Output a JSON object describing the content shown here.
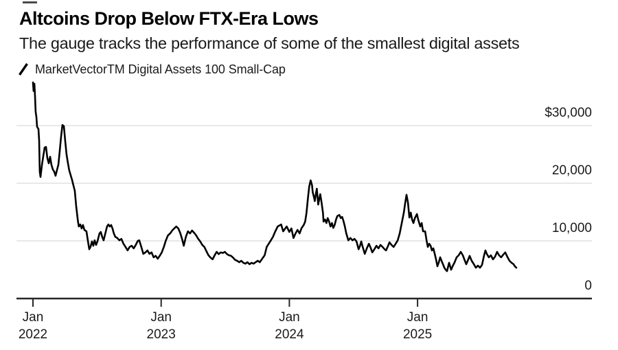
{
  "header": {
    "title": "Altcoins Drop Below FTX-Era Lows",
    "subtitle": "The gauge tracks the performance of some of the smallest digital assets"
  },
  "legend": {
    "series_label": "MarketVectorTM Digital Assets 100 Small-Cap",
    "marker_icon": "diagonal-line",
    "line_color": "#000000"
  },
  "colors": {
    "background": "#ffffff",
    "line": "#000000",
    "grid": "#d9d9d9",
    "axis": "#262626",
    "title_text": "#000000",
    "label_text": "#1a1a1a"
  },
  "chart_data": {
    "type": "line",
    "title": "Altcoins Drop Below FTX-Era Lows",
    "subtitle": "The gauge tracks the performance of some of the smallest digital assets",
    "xlabel": "",
    "ylabel": "",
    "y_axis_side": "right",
    "grid": "horizontal",
    "legend_position": "top-left",
    "ylim": [
      0,
      40000
    ],
    "x_range_years": [
      2021.87,
      2026.35
    ],
    "y_ticks": [
      {
        "label": "$30,000",
        "value": 30000
      },
      {
        "label": "20,000",
        "value": 20000
      },
      {
        "label": "10,000",
        "value": 10000
      },
      {
        "label": "0",
        "value": 0
      }
    ],
    "x_ticks": [
      {
        "month": "Jan",
        "year": "2022",
        "t": 2022.0
      },
      {
        "month": "Jan",
        "year": "2023",
        "t": 2023.0
      },
      {
        "month": "Jan",
        "year": "2024",
        "t": 2024.0
      },
      {
        "month": "Jan",
        "year": "2025",
        "t": 2025.0
      }
    ],
    "series": [
      {
        "name": "MarketVectorTM Digital Assets 100 Small-Cap",
        "color": "#000000",
        "points": [
          [
            2022.0,
            37500
          ],
          [
            2022.005,
            36000
          ],
          [
            2022.011,
            37250
          ],
          [
            2022.016,
            35100
          ],
          [
            2022.021,
            32400
          ],
          [
            2022.027,
            31500
          ],
          [
            2022.032,
            29800
          ],
          [
            2022.043,
            29400
          ],
          [
            2022.048,
            27400
          ],
          [
            2022.053,
            22000
          ],
          [
            2022.059,
            21100
          ],
          [
            2022.07,
            23200
          ],
          [
            2022.08,
            24600
          ],
          [
            2022.091,
            26200
          ],
          [
            2022.102,
            26300
          ],
          [
            2022.112,
            24400
          ],
          [
            2022.123,
            23450
          ],
          [
            2022.134,
            24600
          ],
          [
            2022.144,
            23200
          ],
          [
            2022.155,
            22400
          ],
          [
            2022.166,
            22000
          ],
          [
            2022.176,
            21300
          ],
          [
            2022.187,
            22250
          ],
          [
            2022.198,
            23200
          ],
          [
            2022.209,
            25600
          ],
          [
            2022.219,
            28000
          ],
          [
            2022.23,
            30100
          ],
          [
            2022.241,
            29900
          ],
          [
            2022.251,
            27400
          ],
          [
            2022.262,
            25000
          ],
          [
            2022.273,
            23450
          ],
          [
            2022.283,
            22250
          ],
          [
            2022.294,
            21400
          ],
          [
            2022.305,
            20600
          ],
          [
            2022.316,
            19600
          ],
          [
            2022.326,
            18700
          ],
          [
            2022.337,
            16100
          ],
          [
            2022.348,
            13900
          ],
          [
            2022.353,
            13100
          ],
          [
            2022.358,
            12500
          ],
          [
            2022.369,
            12850
          ],
          [
            2022.38,
            12150
          ],
          [
            2022.39,
            12750
          ],
          [
            2022.401,
            11900
          ],
          [
            2022.417,
            11650
          ],
          [
            2022.428,
            10100
          ],
          [
            2022.439,
            8550
          ],
          [
            2022.449,
            8950
          ],
          [
            2022.46,
            9900
          ],
          [
            2022.471,
            9150
          ],
          [
            2022.481,
            10100
          ],
          [
            2022.492,
            9300
          ],
          [
            2022.503,
            9900
          ],
          [
            2022.519,
            11300
          ],
          [
            2022.529,
            11550
          ],
          [
            2022.54,
            10700
          ],
          [
            2022.551,
            10100
          ],
          [
            2022.567,
            11550
          ],
          [
            2022.578,
            12500
          ],
          [
            2022.588,
            12850
          ],
          [
            2022.599,
            12500
          ],
          [
            2022.61,
            12750
          ],
          [
            2022.62,
            12150
          ],
          [
            2022.631,
            11300
          ],
          [
            2022.642,
            10700
          ],
          [
            2022.658,
            10500
          ],
          [
            2022.674,
            10100
          ],
          [
            2022.69,
            10350
          ],
          [
            2022.706,
            9500
          ],
          [
            2022.722,
            8950
          ],
          [
            2022.738,
            8350
          ],
          [
            2022.754,
            8950
          ],
          [
            2022.77,
            9150
          ],
          [
            2022.786,
            8700
          ],
          [
            2022.802,
            9300
          ],
          [
            2022.818,
            10000
          ],
          [
            2022.829,
            10100
          ],
          [
            2022.845,
            8950
          ],
          [
            2022.861,
            7750
          ],
          [
            2022.877,
            8000
          ],
          [
            2022.893,
            8350
          ],
          [
            2022.909,
            7750
          ],
          [
            2022.925,
            8000
          ],
          [
            2022.941,
            7150
          ],
          [
            2022.957,
            7400
          ],
          [
            2022.973,
            6900
          ],
          [
            2022.989,
            7400
          ],
          [
            2023.005,
            8000
          ],
          [
            2023.021,
            8950
          ],
          [
            2023.037,
            10100
          ],
          [
            2023.053,
            10950
          ],
          [
            2023.07,
            11300
          ],
          [
            2023.086,
            11800
          ],
          [
            2023.102,
            12150
          ],
          [
            2023.118,
            12500
          ],
          [
            2023.134,
            12150
          ],
          [
            2023.15,
            11300
          ],
          [
            2023.166,
            10100
          ],
          [
            2023.176,
            9150
          ],
          [
            2023.193,
            10700
          ],
          [
            2023.209,
            11650
          ],
          [
            2023.225,
            11300
          ],
          [
            2023.241,
            11800
          ],
          [
            2023.257,
            11400
          ],
          [
            2023.273,
            10950
          ],
          [
            2023.289,
            10350
          ],
          [
            2023.305,
            9900
          ],
          [
            2023.321,
            9300
          ],
          [
            2023.337,
            8950
          ],
          [
            2023.353,
            8200
          ],
          [
            2023.369,
            7500
          ],
          [
            2023.385,
            7100
          ],
          [
            2023.401,
            6800
          ],
          [
            2023.417,
            7500
          ],
          [
            2023.433,
            8100
          ],
          [
            2023.449,
            7700
          ],
          [
            2023.465,
            8000
          ],
          [
            2023.481,
            7900
          ],
          [
            2023.497,
            8100
          ],
          [
            2023.513,
            7700
          ],
          [
            2023.529,
            7500
          ],
          [
            2023.545,
            7400
          ],
          [
            2023.561,
            7100
          ],
          [
            2023.577,
            6700
          ],
          [
            2023.593,
            6550
          ],
          [
            2023.609,
            6300
          ],
          [
            2023.625,
            6550
          ],
          [
            2023.641,
            6200
          ],
          [
            2023.657,
            6050
          ],
          [
            2023.673,
            6300
          ],
          [
            2023.689,
            5950
          ],
          [
            2023.705,
            6200
          ],
          [
            2023.721,
            6050
          ],
          [
            2023.737,
            6300
          ],
          [
            2023.753,
            6550
          ],
          [
            2023.769,
            6300
          ],
          [
            2023.791,
            7000
          ],
          [
            2023.807,
            7500
          ],
          [
            2023.823,
            8950
          ],
          [
            2023.839,
            9500
          ],
          [
            2023.856,
            10100
          ],
          [
            2023.872,
            10700
          ],
          [
            2023.888,
            11550
          ],
          [
            2023.909,
            12500
          ],
          [
            2023.936,
            12850
          ],
          [
            2023.952,
            11650
          ],
          [
            2023.979,
            12500
          ],
          [
            2024.0,
            11550
          ],
          [
            2024.016,
            12150
          ],
          [
            2024.032,
            10500
          ],
          [
            2024.048,
            11300
          ],
          [
            2024.064,
            11900
          ],
          [
            2024.08,
            11300
          ],
          [
            2024.096,
            12250
          ],
          [
            2024.112,
            12750
          ],
          [
            2024.123,
            13350
          ],
          [
            2024.134,
            14900
          ],
          [
            2024.144,
            17250
          ],
          [
            2024.155,
            19400
          ],
          [
            2024.166,
            20500
          ],
          [
            2024.177,
            19650
          ],
          [
            2024.182,
            18450
          ],
          [
            2024.193,
            17500
          ],
          [
            2024.198,
            16900
          ],
          [
            2024.209,
            18450
          ],
          [
            2024.214,
            19050
          ],
          [
            2024.225,
            16300
          ],
          [
            2024.235,
            17500
          ],
          [
            2024.241,
            18100
          ],
          [
            2024.251,
            16650
          ],
          [
            2024.262,
            14900
          ],
          [
            2024.267,
            13350
          ],
          [
            2024.278,
            13700
          ],
          [
            2024.289,
            13100
          ],
          [
            2024.299,
            13950
          ],
          [
            2024.31,
            13350
          ],
          [
            2024.321,
            12500
          ],
          [
            2024.332,
            13100
          ],
          [
            2024.342,
            12250
          ],
          [
            2024.353,
            12750
          ],
          [
            2024.364,
            13700
          ],
          [
            2024.374,
            14300
          ],
          [
            2024.39,
            14500
          ],
          [
            2024.401,
            13950
          ],
          [
            2024.412,
            14150
          ],
          [
            2024.422,
            13450
          ],
          [
            2024.433,
            12500
          ],
          [
            2024.444,
            11300
          ],
          [
            2024.46,
            10100
          ],
          [
            2024.476,
            10500
          ],
          [
            2024.492,
            10100
          ],
          [
            2024.508,
            10350
          ],
          [
            2024.524,
            9900
          ],
          [
            2024.54,
            8550
          ],
          [
            2024.551,
            9150
          ],
          [
            2024.561,
            9900
          ],
          [
            2024.572,
            8950
          ],
          [
            2024.588,
            7750
          ],
          [
            2024.604,
            8700
          ],
          [
            2024.62,
            9500
          ],
          [
            2024.636,
            8700
          ],
          [
            2024.647,
            8000
          ],
          [
            2024.663,
            8550
          ],
          [
            2024.679,
            9150
          ],
          [
            2024.695,
            8700
          ],
          [
            2024.711,
            9300
          ],
          [
            2024.727,
            8950
          ],
          [
            2024.743,
            8550
          ],
          [
            2024.754,
            8350
          ],
          [
            2024.77,
            9150
          ],
          [
            2024.781,
            9750
          ],
          [
            2024.797,
            9300
          ],
          [
            2024.813,
            8950
          ],
          [
            2024.829,
            9500
          ],
          [
            2024.845,
            10100
          ],
          [
            2024.861,
            11300
          ],
          [
            2024.877,
            13100
          ],
          [
            2024.893,
            14900
          ],
          [
            2024.904,
            16650
          ],
          [
            2024.914,
            18000
          ],
          [
            2024.925,
            16650
          ],
          [
            2024.936,
            14050
          ],
          [
            2024.947,
            14900
          ],
          [
            2024.957,
            13700
          ],
          [
            2024.968,
            13100
          ],
          [
            2024.979,
            13950
          ],
          [
            2024.995,
            14650
          ],
          [
            2025.005,
            13700
          ],
          [
            2025.021,
            12500
          ],
          [
            2025.032,
            13100
          ],
          [
            2025.043,
            11650
          ],
          [
            2025.059,
            11650
          ],
          [
            2025.07,
            10100
          ],
          [
            2025.08,
            8950
          ],
          [
            2025.091,
            9500
          ],
          [
            2025.102,
            9150
          ],
          [
            2025.112,
            8350
          ],
          [
            2025.123,
            8700
          ],
          [
            2025.134,
            7750
          ],
          [
            2025.144,
            6800
          ],
          [
            2025.155,
            5600
          ],
          [
            2025.166,
            6300
          ],
          [
            2025.176,
            7150
          ],
          [
            2025.187,
            6550
          ],
          [
            2025.198,
            5950
          ],
          [
            2025.209,
            5350
          ],
          [
            2025.219,
            5000
          ],
          [
            2025.23,
            4750
          ],
          [
            2025.246,
            6200
          ],
          [
            2025.262,
            5000
          ],
          [
            2025.273,
            5600
          ],
          [
            2025.289,
            6300
          ],
          [
            2025.305,
            7150
          ],
          [
            2025.321,
            7500
          ],
          [
            2025.337,
            8100
          ],
          [
            2025.353,
            7500
          ],
          [
            2025.369,
            6550
          ],
          [
            2025.38,
            5950
          ],
          [
            2025.396,
            6800
          ],
          [
            2025.406,
            7400
          ],
          [
            2025.422,
            6550
          ],
          [
            2025.439,
            5950
          ],
          [
            2025.455,
            5350
          ],
          [
            2025.471,
            5700
          ],
          [
            2025.487,
            5350
          ],
          [
            2025.503,
            5850
          ],
          [
            2025.519,
            7500
          ],
          [
            2025.529,
            8350
          ],
          [
            2025.54,
            7750
          ],
          [
            2025.556,
            7150
          ],
          [
            2025.572,
            7500
          ],
          [
            2025.588,
            6800
          ],
          [
            2025.604,
            7250
          ],
          [
            2025.62,
            8100
          ],
          [
            2025.636,
            7500
          ],
          [
            2025.652,
            7150
          ],
          [
            2025.668,
            7600
          ],
          [
            2025.684,
            8000
          ],
          [
            2025.7,
            7250
          ],
          [
            2025.717,
            6550
          ],
          [
            2025.733,
            6200
          ],
          [
            2025.749,
            5950
          ],
          [
            2025.759,
            5600
          ],
          [
            2025.77,
            5350
          ]
        ]
      }
    ]
  }
}
